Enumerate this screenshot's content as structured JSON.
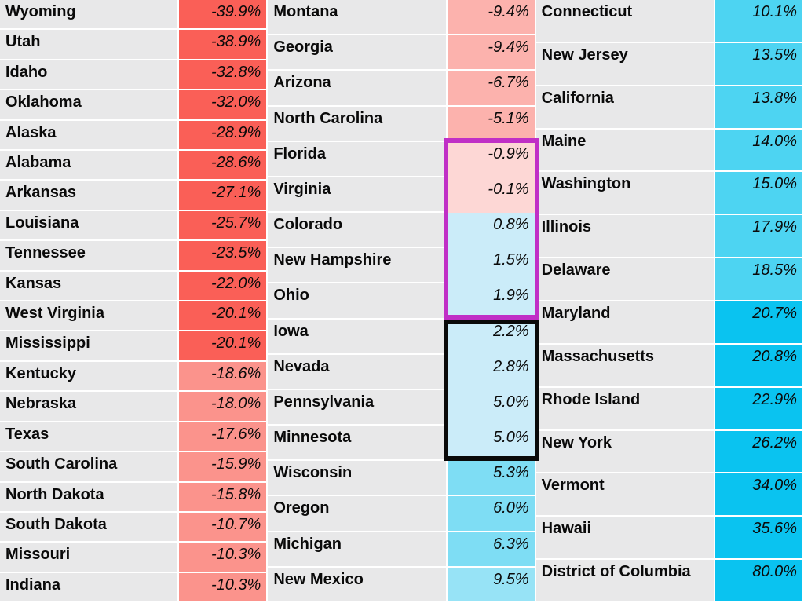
{
  "table": {
    "styles": {
      "name_cell_bg": "#e8e8e9",
      "separator": "#ffffff",
      "text_color": "#0a0a0a",
      "strong_red": "#fa5f57",
      "light_red": "#fb938c",
      "pink": "#fcb2ad",
      "pale_pink": "#fdd7d5",
      "pale_blue": "#cbecf9",
      "mid_blue": "#7eddf4",
      "mid_light_blue": "#97e3f6",
      "bright_blue": "#4dd4f2",
      "deep_blue": "#0ac3f0"
    },
    "highlight_boxes": [
      {
        "id": "box-magenta",
        "label": "near-zero-range-box",
        "color": "#c02fc6",
        "first_state": "Florida",
        "last_state": "Ohio"
      },
      {
        "id": "box-black",
        "label": "small-positive-range-box",
        "color": "#0a0a0a",
        "first_state": "Iowa",
        "last_state": "Minnesota"
      }
    ],
    "columns": [
      {
        "name": "most-negative",
        "rows": [
          {
            "state": "Wyoming",
            "value": "-39.9%",
            "bg": "#fa5f57"
          },
          {
            "state": "Utah",
            "value": "-38.9%",
            "bg": "#fa5f57"
          },
          {
            "state": "Idaho",
            "value": "-32.8%",
            "bg": "#fa5f57"
          },
          {
            "state": "Oklahoma",
            "value": "-32.0%",
            "bg": "#fa5f57"
          },
          {
            "state": "Alaska",
            "value": "-28.9%",
            "bg": "#fa5f57"
          },
          {
            "state": "Alabama",
            "value": "-28.6%",
            "bg": "#fa5f57"
          },
          {
            "state": "Arkansas",
            "value": "-27.1%",
            "bg": "#fa5f57"
          },
          {
            "state": "Louisiana",
            "value": "-25.7%",
            "bg": "#fa5f57"
          },
          {
            "state": "Tennessee",
            "value": "-23.5%",
            "bg": "#fa5f57"
          },
          {
            "state": "Kansas",
            "value": "-22.0%",
            "bg": "#fa5f57"
          },
          {
            "state": "West Virginia",
            "value": "-20.1%",
            "bg": "#fa5f57"
          },
          {
            "state": "Mississippi",
            "value": "-20.1%",
            "bg": "#fa5f57"
          },
          {
            "state": "Kentucky",
            "value": "-18.6%",
            "bg": "#fb938c"
          },
          {
            "state": "Nebraska",
            "value": "-18.0%",
            "bg": "#fb938c"
          },
          {
            "state": "Texas",
            "value": "-17.6%",
            "bg": "#fb938c"
          },
          {
            "state": "South Carolina",
            "value": "-15.9%",
            "bg": "#fb938c"
          },
          {
            "state": "North Dakota",
            "value": "-15.8%",
            "bg": "#fb938c"
          },
          {
            "state": "South Dakota",
            "value": "-10.7%",
            "bg": "#fb938c"
          },
          {
            "state": "Missouri",
            "value": "-10.3%",
            "bg": "#fb938c"
          },
          {
            "state": "Indiana",
            "value": "-10.3%",
            "bg": "#fb938c"
          }
        ]
      },
      {
        "name": "middle-range",
        "rows": [
          {
            "state": "Montana",
            "value": "-9.4%",
            "bg": "#fcb2ad"
          },
          {
            "state": "Georgia",
            "value": "-9.4%",
            "bg": "#fcb2ad"
          },
          {
            "state": "Arizona",
            "value": "-6.7%",
            "bg": "#fcb2ad"
          },
          {
            "state": "North Carolina",
            "value": "-5.1%",
            "bg": "#fcb2ad"
          },
          {
            "state": "Florida",
            "value": "-0.9%",
            "bg": "#fdd7d5",
            "seamless": true
          },
          {
            "state": "Virginia",
            "value": "-0.1%",
            "bg": "#fdd7d5",
            "seamless": true
          },
          {
            "state": "Colorado",
            "value": "0.8%",
            "bg": "#cbecf9",
            "seamless": true
          },
          {
            "state": "New Hampshire",
            "value": "1.5%",
            "bg": "#cbecf9",
            "seamless": true
          },
          {
            "state": "Ohio",
            "value": "1.9%",
            "bg": "#cbecf9",
            "seamless": true
          },
          {
            "state": "Iowa",
            "value": "2.2%",
            "bg": "#cbecf9",
            "seamless": true
          },
          {
            "state": "Nevada",
            "value": "2.8%",
            "bg": "#cbecf9",
            "seamless": true
          },
          {
            "state": "Pennsylvania",
            "value": "5.0%",
            "bg": "#cbecf9",
            "seamless": true
          },
          {
            "state": "Minnesota",
            "value": "5.0%",
            "bg": "#cbecf9",
            "seamless": true
          },
          {
            "state": "Wisconsin",
            "value": "5.3%",
            "bg": "#7eddf4"
          },
          {
            "state": "Oregon",
            "value": "6.0%",
            "bg": "#7eddf4"
          },
          {
            "state": "Michigan",
            "value": "6.3%",
            "bg": "#7eddf4"
          },
          {
            "state": "New Mexico",
            "value": "9.5%",
            "bg": "#97e3f6"
          }
        ]
      },
      {
        "name": "most-positive",
        "rows": [
          {
            "state": "Connecticut",
            "value": "10.1%",
            "bg": "#4dd4f2"
          },
          {
            "state": "New Jersey",
            "value": "13.5%",
            "bg": "#4dd4f2"
          },
          {
            "state": "California",
            "value": "13.8%",
            "bg": "#4dd4f2"
          },
          {
            "state": "Maine",
            "value": "14.0%",
            "bg": "#4dd4f2"
          },
          {
            "state": "Washington",
            "value": "15.0%",
            "bg": "#4dd4f2"
          },
          {
            "state": "Illinois",
            "value": "17.9%",
            "bg": "#4dd4f2"
          },
          {
            "state": "Delaware",
            "value": "18.5%",
            "bg": "#4dd4f2"
          },
          {
            "state": "Maryland",
            "value": "20.7%",
            "bg": "#0ac3f0"
          },
          {
            "state": "Massachusetts",
            "value": "20.8%",
            "bg": "#0ac3f0"
          },
          {
            "state": "Rhode Island",
            "value": "22.9%",
            "bg": "#0ac3f0"
          },
          {
            "state": "New York",
            "value": "26.2%",
            "bg": "#0ac3f0"
          },
          {
            "state": "Vermont",
            "value": "34.0%",
            "bg": "#0ac3f0"
          },
          {
            "state": "Hawaii",
            "value": "35.6%",
            "bg": "#0ac3f0"
          },
          {
            "state": "District of Columbia",
            "value": "80.0%",
            "bg": "#0ac3f0"
          }
        ]
      }
    ]
  },
  "chart_data": {
    "type": "heatmap",
    "title": "",
    "layout": "three ranked columns of state/value cells, color-coded red (negative) to blue (positive)",
    "categories": [
      "Wyoming",
      "Utah",
      "Idaho",
      "Oklahoma",
      "Alaska",
      "Alabama",
      "Arkansas",
      "Louisiana",
      "Tennessee",
      "Kansas",
      "West Virginia",
      "Mississippi",
      "Kentucky",
      "Nebraska",
      "Texas",
      "South Carolina",
      "North Dakota",
      "South Dakota",
      "Missouri",
      "Indiana",
      "Montana",
      "Georgia",
      "Arizona",
      "North Carolina",
      "Florida",
      "Virginia",
      "Colorado",
      "New Hampshire",
      "Ohio",
      "Iowa",
      "Nevada",
      "Pennsylvania",
      "Minnesota",
      "Wisconsin",
      "Oregon",
      "Michigan",
      "New Mexico",
      "Connecticut",
      "New Jersey",
      "California",
      "Maine",
      "Washington",
      "Illinois",
      "Delaware",
      "Maryland",
      "Massachusetts",
      "Rhode Island",
      "New York",
      "Vermont",
      "Hawaii",
      "District of Columbia"
    ],
    "values": [
      -39.9,
      -38.9,
      -32.8,
      -32.0,
      -28.9,
      -28.6,
      -27.1,
      -25.7,
      -23.5,
      -22.0,
      -20.1,
      -20.1,
      -18.6,
      -18.0,
      -17.6,
      -15.9,
      -15.8,
      -10.7,
      -10.3,
      -10.3,
      -9.4,
      -9.4,
      -6.7,
      -5.1,
      -0.9,
      -0.1,
      0.8,
      1.5,
      1.9,
      2.2,
      2.8,
      5.0,
      5.0,
      5.3,
      6.0,
      6.3,
      9.5,
      10.1,
      13.5,
      13.8,
      14.0,
      15.0,
      17.9,
      18.5,
      20.7,
      20.8,
      22.9,
      26.2,
      34.0,
      35.6,
      80.0
    ],
    "value_unit": "%",
    "annotations": [
      {
        "label": "magenta box around Florida through Ohio values",
        "range": [
          -0.9,
          1.9
        ]
      },
      {
        "label": "black box around Iowa through Minnesota values",
        "range": [
          2.2,
          5.0
        ]
      }
    ]
  }
}
